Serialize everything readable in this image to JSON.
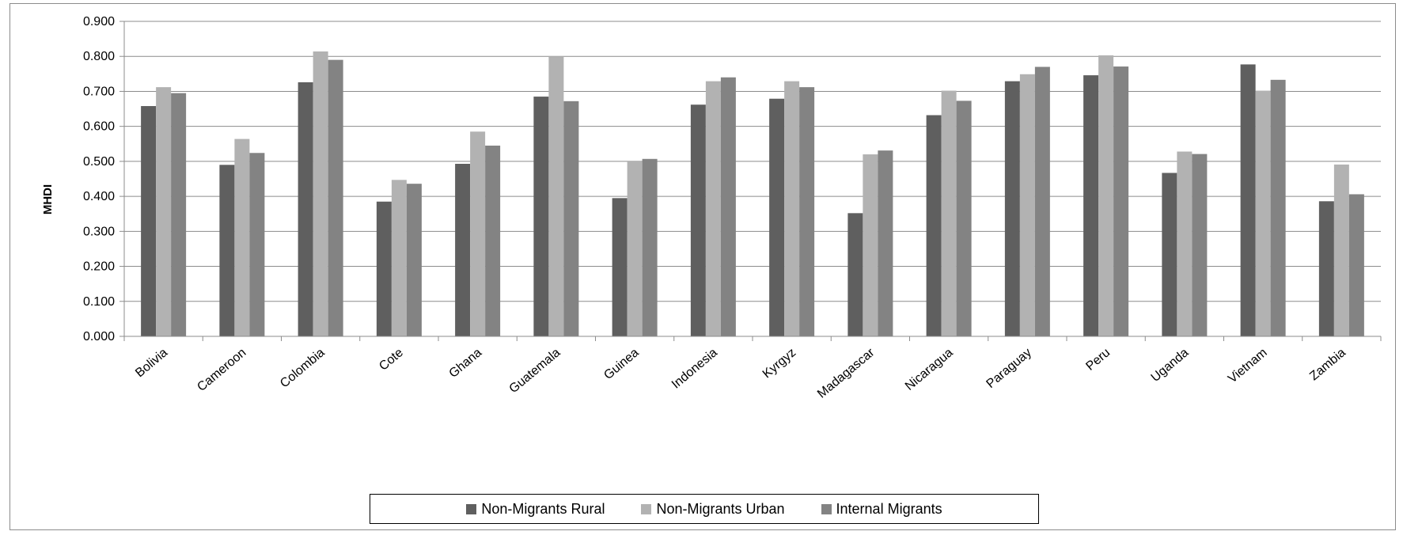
{
  "chart_data": {
    "type": "bar",
    "title": "",
    "xlabel": "",
    "ylabel": "MHDI",
    "ylim": [
      0,
      0.9
    ],
    "yticks": [
      "0.000",
      "0.100",
      "0.200",
      "0.300",
      "0.400",
      "0.500",
      "0.600",
      "0.700",
      "0.800",
      "0.900"
    ],
    "grid": true,
    "legend_position": "bottom",
    "categories": [
      "Bolivia",
      "Cameroon",
      "Colombia",
      "Cote",
      "Ghana",
      "Guatemala",
      "Guinea",
      "Indonesia",
      "Kyrgyz",
      "Madagascar",
      "Nicaragua",
      "Paraguay",
      "Peru",
      "Uganda",
      "Vietnam",
      "Zambia"
    ],
    "series": [
      {
        "name": "Non-Migrants Rural",
        "color": "#5f5f5f",
        "values": [
          0.658,
          0.49,
          0.726,
          0.385,
          0.493,
          0.685,
          0.395,
          0.662,
          0.679,
          0.352,
          0.632,
          0.729,
          0.746,
          0.467,
          0.777,
          0.386
        ]
      },
      {
        "name": "Non-Migrants Urban",
        "color": "#b2b2b2",
        "values": [
          0.712,
          0.564,
          0.814,
          0.447,
          0.585,
          0.8,
          0.5,
          0.729,
          0.729,
          0.52,
          0.702,
          0.749,
          0.803,
          0.528,
          0.702,
          0.491
        ]
      },
      {
        "name": "Internal Migrants",
        "color": "#838383",
        "values": [
          0.695,
          0.524,
          0.79,
          0.436,
          0.545,
          0.672,
          0.507,
          0.74,
          0.712,
          0.531,
          0.673,
          0.77,
          0.771,
          0.521,
          0.733,
          0.406
        ]
      }
    ]
  }
}
